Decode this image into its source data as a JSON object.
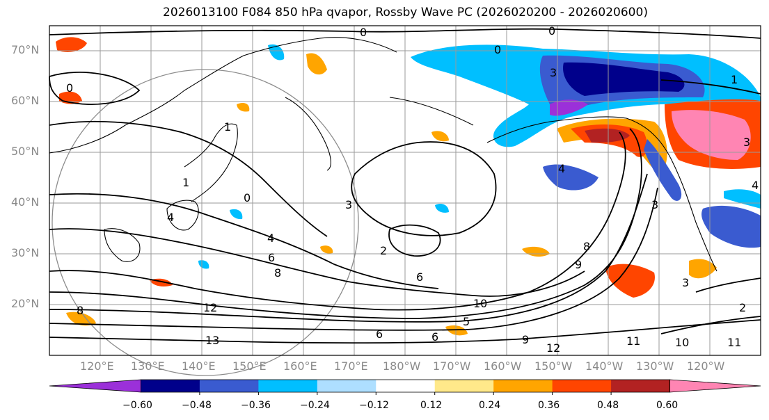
{
  "title": "2026013100 F084 850 hPa qvapor, Rossby Wave PC (2026020200 - 2026020600)",
  "lat_labels": [
    "70°N",
    "60°N",
    "50°N",
    "40°N",
    "30°N",
    "20°N"
  ],
  "lon_labels": [
    "120°E",
    "130°E",
    "140°E",
    "150°E",
    "160°E",
    "170°E",
    "180°W",
    "170°W",
    "160°W",
    "150°W",
    "140°W",
    "130°W",
    "120°W"
  ],
  "colorbar": {
    "ticks": [
      "−0.60",
      "−0.48",
      "−0.36",
      "−0.24",
      "−0.12",
      "0.12",
      "0.24",
      "0.36",
      "0.48",
      "0.60"
    ],
    "colors": [
      "#9b30d9",
      "#00008b",
      "#3a5bd0",
      "#00bfff",
      "#aedfff",
      "#ffffff",
      "#ffe98a",
      "#ffa500",
      "#ff4500",
      "#b22222",
      "#ff85b3"
    ]
  },
  "contour_labels": [
    "0",
    "0",
    "0",
    "0",
    "1",
    "1",
    "3",
    "2",
    "6",
    "4",
    "6",
    "8",
    "13",
    "11",
    "10",
    "11",
    "12",
    "9",
    "4",
    "3",
    "2",
    "1",
    "3",
    "0",
    "6",
    "8",
    "10",
    "4",
    "8",
    "9",
    "3",
    "6",
    "12",
    "5",
    "4",
    "3"
  ]
}
